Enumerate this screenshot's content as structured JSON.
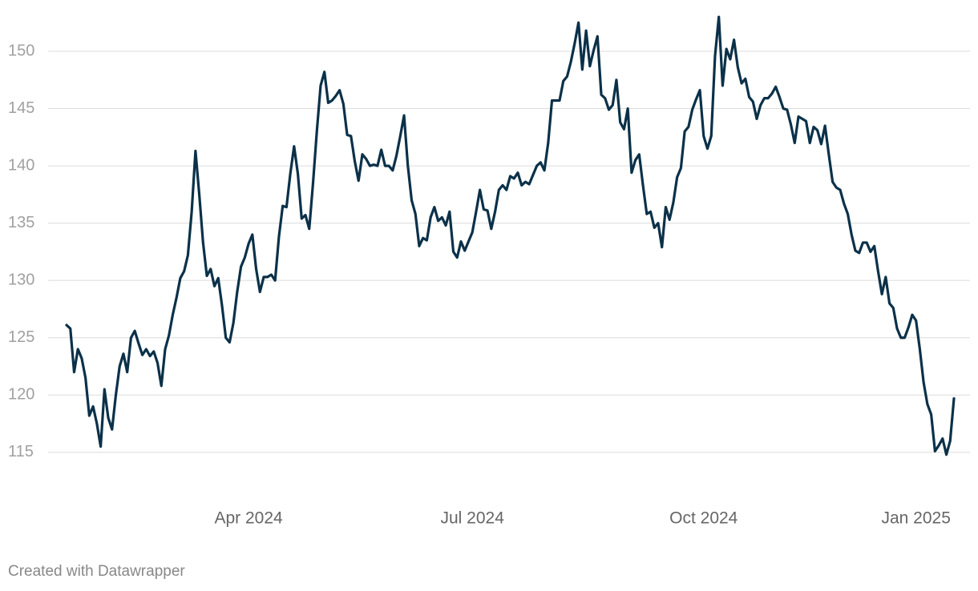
{
  "chart_data": {
    "type": "line",
    "x": [
      "2024-01",
      "2024-01",
      "2024-01",
      "2024-01",
      "2024-01",
      "2024-01",
      "2024-01",
      "2024-01",
      "2024-01",
      "2024-01",
      "2024-01",
      "2024-01",
      "2024-02",
      "2024-02",
      "2024-02",
      "2024-02",
      "2024-02",
      "2024-02",
      "2024-02",
      "2024-02",
      "2024-02",
      "2024-02",
      "2024-02",
      "2024-02",
      "2024-02",
      "2024-02",
      "2024-02",
      "2024-02",
      "2024-02",
      "2024-02",
      "2024-02",
      "2024-02",
      "2024-02",
      "2024-03",
      "2024-03",
      "2024-03",
      "2024-03",
      "2024-03",
      "2024-03",
      "2024-03",
      "2024-03",
      "2024-03",
      "2024-03",
      "2024-03",
      "2024-03",
      "2024-03",
      "2024-03",
      "2024-03",
      "2024-04",
      "2024-04",
      "2024-04",
      "2024-04",
      "2024-04",
      "2024-04",
      "2024-04",
      "2024-04",
      "2024-04",
      "2024-04",
      "2024-04",
      "2024-04",
      "2024-04",
      "2024-04",
      "2024-04",
      "2024-04",
      "2024-04",
      "2024-04",
      "2024-04",
      "2024-04",
      "2024-05",
      "2024-05",
      "2024-05",
      "2024-05",
      "2024-05",
      "2024-05",
      "2024-05",
      "2024-05",
      "2024-05",
      "2024-05",
      "2024-05",
      "2024-05",
      "2024-05",
      "2024-05",
      "2024-05",
      "2024-05",
      "2024-05",
      "2024-05",
      "2024-05",
      "2024-05",
      "2024-06",
      "2024-06",
      "2024-06",
      "2024-06",
      "2024-06",
      "2024-06",
      "2024-06",
      "2024-06",
      "2024-06",
      "2024-06",
      "2024-06",
      "2024-06",
      "2024-06",
      "2024-06",
      "2024-06",
      "2024-06",
      "2024-06",
      "2024-06",
      "2024-06",
      "2024-07",
      "2024-07",
      "2024-07",
      "2024-07",
      "2024-07",
      "2024-07",
      "2024-07",
      "2024-07",
      "2024-07",
      "2024-07",
      "2024-07",
      "2024-07",
      "2024-07",
      "2024-07",
      "2024-07",
      "2024-07",
      "2024-07",
      "2024-07",
      "2024-07",
      "2024-07",
      "2024-07",
      "2024-08",
      "2024-08",
      "2024-08",
      "2024-08",
      "2024-08",
      "2024-08",
      "2024-08",
      "2024-08",
      "2024-08",
      "2024-08",
      "2024-08",
      "2024-08",
      "2024-08",
      "2024-08",
      "2024-08",
      "2024-08",
      "2024-08",
      "2024-08",
      "2024-08",
      "2024-08",
      "2024-09",
      "2024-09",
      "2024-09",
      "2024-09",
      "2024-09",
      "2024-09",
      "2024-09",
      "2024-09",
      "2024-09",
      "2024-09",
      "2024-09",
      "2024-09",
      "2024-09",
      "2024-09",
      "2024-09",
      "2024-09",
      "2024-09",
      "2024-09",
      "2024-09",
      "2024-09",
      "2024-10",
      "2024-10",
      "2024-10",
      "2024-10",
      "2024-10",
      "2024-10",
      "2024-10",
      "2024-10",
      "2024-10",
      "2024-10",
      "2024-10",
      "2024-10",
      "2024-10",
      "2024-10",
      "2024-10",
      "2024-10",
      "2024-10",
      "2024-10",
      "2024-10",
      "2024-10",
      "2024-10",
      "2024-11",
      "2024-11",
      "2024-11",
      "2024-11",
      "2024-11",
      "2024-11",
      "2024-11",
      "2024-11",
      "2024-11",
      "2024-11",
      "2024-11",
      "2024-11",
      "2024-11",
      "2024-11",
      "2024-11",
      "2024-11",
      "2024-11",
      "2024-12",
      "2024-12",
      "2024-12",
      "2024-12",
      "2024-12",
      "2024-12",
      "2024-12",
      "2024-12",
      "2024-12",
      "2024-12",
      "2024-12",
      "2024-12",
      "2024-12",
      "2024-12",
      "2024-12",
      "2024-12",
      "2024-12",
      "2024-12",
      "2025-01",
      "2025-01",
      "2025-01",
      "2025-01",
      "2025-01",
      "2025-01",
      "2025-01",
      "2025-01",
      "2025-01",
      "2025-01",
      "2025-01"
    ],
    "values": [
      126.1,
      125.8,
      122,
      124,
      123.2,
      121.5,
      118.2,
      119,
      117.5,
      115.5,
      120.5,
      118,
      117,
      120,
      122.5,
      123.6,
      122,
      125,
      125.6,
      124.5,
      123.5,
      124,
      123.4,
      123.8,
      122.8,
      120.8,
      124,
      125.2,
      127,
      128.5,
      130.2,
      130.8,
      132.2,
      136,
      141.3,
      137.5,
      133.3,
      130.4,
      131,
      129.5,
      130.2,
      127.8,
      125,
      124.6,
      126.3,
      129,
      131.2,
      132,
      133.2,
      134,
      131,
      129,
      130.3,
      130.3,
      130.5,
      130,
      133.8,
      136.5,
      136.4,
      139.3,
      141.7,
      139.3,
      135.4,
      135.7,
      134.5,
      138.5,
      143,
      147,
      148.2,
      145.5,
      145.7,
      146.1,
      146.6,
      145.4,
      142.7,
      142.6,
      140.4,
      138.7,
      141,
      140.6,
      140,
      140.1,
      140,
      141.4,
      140,
      140,
      139.6,
      140.9,
      142.6,
      144.4,
      140,
      137,
      135.8,
      133,
      133.7,
      133.5,
      135.5,
      136.4,
      135.2,
      135.5,
      134.8,
      136,
      132.5,
      132,
      133.4,
      132.6,
      133.4,
      134.2,
      136,
      137.9,
      136.2,
      136.1,
      134.5,
      136,
      137.9,
      138.3,
      137.9,
      139.1,
      138.9,
      139.4,
      138.3,
      138.6,
      138.4,
      139.2,
      140,
      140.3,
      139.6,
      142,
      145.7,
      145.7,
      145.7,
      147.4,
      147.8,
      149.1,
      150.7,
      152.5,
      148.4,
      151.8,
      148.7,
      150.1,
      151.3,
      146.2,
      145.9,
      144.9,
      145.3,
      147.5,
      143.8,
      143.2,
      145,
      139.4,
      140.5,
      141,
      138.3,
      135.8,
      136,
      134.6,
      135,
      132.9,
      136.4,
      135.3,
      136.8,
      139,
      139.8,
      143,
      143.4,
      144.9,
      145.8,
      146.6,
      142.6,
      141.5,
      142.6,
      149.6,
      153,
      147,
      150.2,
      149.3,
      151,
      148.6,
      147.2,
      147.6,
      146,
      145.6,
      144.1,
      145.3,
      145.9,
      145.9,
      146.3,
      146.9,
      146,
      145,
      144.9,
      143.6,
      142,
      144.3,
      144.1,
      143.9,
      142,
      143.4,
      143.1,
      141.9,
      143.5,
      141,
      138.6,
      138.1,
      137.9,
      136.7,
      135.8,
      134,
      132.6,
      132.4,
      133.3,
      133.3,
      132.5,
      133,
      130.8,
      128.8,
      130.3,
      128,
      127.6,
      125.8,
      125,
      125,
      125.9,
      127,
      126.5,
      124,
      121.1,
      119.2,
      118.3,
      115.1,
      115.6,
      116.2,
      114.8,
      116,
      119.7
    ],
    "color": "#0b3149",
    "ylim": [
      112.5,
      154.5
    ],
    "yticks": [
      115,
      120,
      125,
      130,
      135,
      140,
      145,
      150
    ],
    "grid": true,
    "xticks": [
      {
        "value": "2024-04",
        "label": "Apr 2024"
      },
      {
        "value": "2024-07",
        "label": "Jul 2024"
      },
      {
        "value": "2024-10",
        "label": "Oct 2024"
      },
      {
        "value": "2025-01",
        "label": "Jan 2025"
      }
    ],
    "footer": "Created with Datawrapper"
  }
}
